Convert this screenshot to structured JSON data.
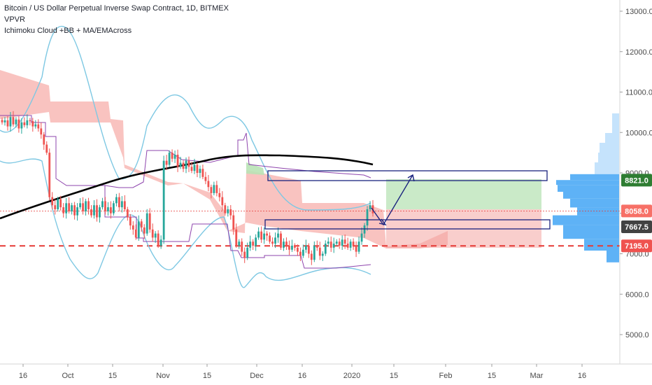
{
  "legend": {
    "symbol_line": "Bitcoin / US Dollar Perpetual Inverse Swap Contract, 1D, BITMEX",
    "indicator_1": "VPVR",
    "indicator_2": "Ichimoku Cloud +BB + MA/EMAcross"
  },
  "colors": {
    "candle_up": "#26a69a",
    "candle_down": "#ef5350",
    "bollinger": "#7ec8e3",
    "ma_line": "#000000",
    "donchian": "#8e44ad",
    "cloud_red": "#f8b4b0",
    "cloud_green": "#b8e3b5",
    "volume_profile": "#42a5f5",
    "volume_profile_light": "#bbdefb",
    "box_outline": "#1a237e",
    "support_line": "#e53935",
    "badge_green": "#2e7d32",
    "badge_red": "#ef5350",
    "badge_dark": "#424242",
    "badge_light_red": "#f77067"
  },
  "chart_data": {
    "type": "candlestick",
    "ylim": [
      4200,
      13600
    ],
    "y_ticks": [
      5000,
      6000,
      7000,
      8000,
      9000,
      10000,
      11000,
      12000,
      13000
    ],
    "y_tick_labels": [
      "5000.0",
      "6000.0",
      "7000.0",
      "8000.0",
      "9000.0",
      "10000.0",
      "11000.0",
      "12000.0",
      "13000.0"
    ],
    "x_ticks": [
      "16",
      "Oct",
      "15",
      "Nov",
      "15",
      "Dec",
      "16",
      "2020",
      "15",
      "Feb",
      "15",
      "Mar",
      "16"
    ],
    "price_badges": [
      {
        "value": 8821.0,
        "label": "8821.0",
        "color": "green"
      },
      {
        "value": 8058.0,
        "label": "8058.0",
        "color": "light_red"
      },
      {
        "value": 7667.5,
        "label": "7667.5",
        "color": "dark"
      },
      {
        "value": 7195.0,
        "label": "7195.0",
        "color": "red"
      }
    ],
    "horizontal_lines": [
      {
        "value": 7195,
        "style": "dashed",
        "color": "red"
      },
      {
        "value": 8058,
        "style": "dotted",
        "color": "red"
      }
    ],
    "closes": [
      10250,
      10300,
      10150,
      10380,
      10200,
      10320,
      10100,
      10250,
      10180,
      10300,
      10280,
      10150,
      10200,
      10100,
      9950,
      9700,
      9500,
      8400,
      8200,
      8100,
      8350,
      8150,
      8000,
      8250,
      8050,
      8200,
      7950,
      8150,
      8250,
      8050,
      8300,
      8100,
      7950,
      8200,
      7900,
      8150,
      8300,
      8050,
      8150,
      8000,
      8250,
      8400,
      8150,
      8300,
      8100,
      7900,
      7700,
      7600,
      7400,
      7800,
      7650,
      7500,
      8000,
      7600,
      7400,
      7500,
      7200,
      7350,
      9300,
      9200,
      9500,
      9350,
      9450,
      9150,
      9250,
      9100,
      9300,
      9150,
      9050,
      9200,
      9000,
      9100,
      8900,
      8800,
      8650,
      8500,
      8700,
      8500,
      8400,
      8200,
      8000,
      8100,
      7950,
      7600,
      7200,
      7300,
      7050,
      6900,
      7150,
      7300,
      7200,
      7400,
      7550,
      7350,
      7500,
      7450,
      7300,
      7250,
      7400,
      7500,
      7150,
      7300,
      7200,
      7100,
      7200,
      7150,
      7050,
      6950,
      7100,
      7200,
      7000,
      6850,
      7200,
      7150,
      6950,
      7000,
      7250,
      7300,
      7150,
      7250,
      7300,
      7200,
      7350,
      7250,
      7150,
      7300,
      7200,
      7050,
      7300,
      7500,
      7700,
      8100,
      8200,
      8000
    ]
  }
}
